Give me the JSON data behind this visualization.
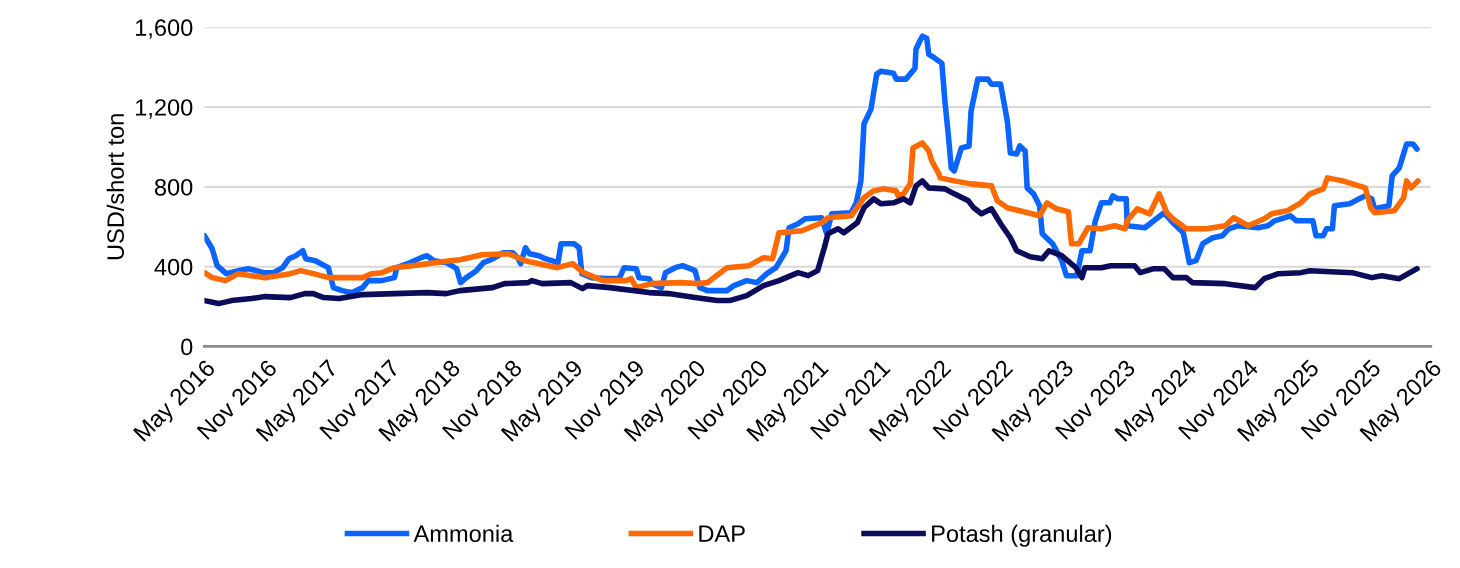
{
  "chart_data": {
    "type": "line",
    "ylabel": "USD/short ton",
    "xlim": [
      "2016-05",
      "2026-05"
    ],
    "xticks": [
      {
        "value": "2016-05",
        "label": "May 2016"
      },
      {
        "value": "2016-11",
        "label": "Nov 2016"
      },
      {
        "value": "2017-05",
        "label": "May 2017"
      },
      {
        "value": "2017-11",
        "label": "Nov 2017"
      },
      {
        "value": "2018-05",
        "label": "May 2018"
      },
      {
        "value": "2018-11",
        "label": "Nov 2018"
      },
      {
        "value": "2019-05",
        "label": "May 2019"
      },
      {
        "value": "2019-11",
        "label": "Nov 2019"
      },
      {
        "value": "2020-05",
        "label": "May 2020"
      },
      {
        "value": "2020-11",
        "label": "Nov 2020"
      },
      {
        "value": "2021-05",
        "label": "May 2021"
      },
      {
        "value": "2021-11",
        "label": "Nov 2021"
      },
      {
        "value": "2022-05",
        "label": "May 2022"
      },
      {
        "value": "2022-11",
        "label": "Nov 2022"
      },
      {
        "value": "2023-05",
        "label": "May 2023"
      },
      {
        "value": "2023-11",
        "label": "Nov 2023"
      },
      {
        "value": "2024-05",
        "label": "May 2024"
      },
      {
        "value": "2024-11",
        "label": "Nov 2024"
      },
      {
        "value": "2025-05",
        "label": "May 2025"
      },
      {
        "value": "2025-11",
        "label": "Nov 2025"
      },
      {
        "value": "2026-05",
        "label": "May 2026"
      }
    ],
    "ylim": [
      0,
      1600
    ],
    "yticks": [
      0,
      {
        "value": 400,
        "label": "400"
      },
      {
        "value": 800,
        "label": "800"
      },
      {
        "value": 1200,
        "label": "1,200"
      },
      {
        "value": 1600,
        "label": "1,600"
      }
    ],
    "grid": "y",
    "legend": "bottom",
    "marker": "none",
    "line_style": "solid",
    "series": [
      {
        "name": "Ammonia",
        "color": "#0a64ff",
        "x": [
          "2016-05-01",
          "2016-05-24",
          "2016-06-08",
          "2016-07-05",
          "2016-08-10",
          "2016-09-08",
          "2016-10-25",
          "2016-11-23",
          "2016-12-20",
          "2017-01-08",
          "2017-01-28",
          "2017-02-18",
          "2017-02-27",
          "2017-03-27",
          "2017-05-05",
          "2017-05-20",
          "2017-06-15",
          "2017-07-15",
          "2017-08-15",
          "2017-09-01",
          "2017-10-10",
          "2017-11-18",
          "2017-11-25",
          "2017-12-27",
          "2018-02-05",
          "2018-02-23",
          "2018-03-15",
          "2018-04-22",
          "2018-05-22",
          "2018-06-03",
          "2018-06-20",
          "2018-07-20",
          "2018-08-10",
          "2018-09-08",
          "2018-10-08",
          "2018-11-05",
          "2018-11-20",
          "2018-11-29",
          "2018-12-13",
          "2018-12-25",
          "2019-01-22",
          "2019-02-10",
          "2019-03-20",
          "2019-03-29",
          "2019-05-07",
          "2019-05-22",
          "2019-05-30",
          "2019-06-28",
          "2019-08-12",
          "2019-09-18",
          "2019-10-03",
          "2019-11-08",
          "2019-11-16",
          "2019-12-16",
          "2019-12-24",
          "2020-01-22",
          "2020-02-03",
          "2020-03-03",
          "2020-03-25",
          "2020-05-01",
          "2020-05-15",
          "2020-06-07",
          "2020-08-04",
          "2020-08-25",
          "2020-10-02",
          "2020-11-01",
          "2020-12-01",
          "2020-12-28",
          "2021-01-27",
          "2021-02-05",
          "2021-03-04",
          "2021-03-25",
          "2021-05-13",
          "2021-05-28",
          "2021-06-12",
          "2021-08-09",
          "2021-08-24",
          "2021-09-07",
          "2021-09-16",
          "2021-10-07",
          "2021-10-24",
          "2021-11-06",
          "2021-12-13",
          "2021-12-21",
          "2022-01-19",
          "2022-02-03",
          "2022-02-15",
          "2022-02-18",
          "2022-03-01",
          "2022-03-09",
          "2022-03-22",
          "2022-03-28",
          "2022-04-15",
          "2022-05-06",
          "2022-05-15",
          "2022-05-25",
          "2022-06-03",
          "2022-06-12",
          "2022-07-03",
          "2022-07-26",
          "2022-08-01",
          "2022-08-21",
          "2022-09-20",
          "2022-10-01",
          "2022-10-28",
          "2022-11-17",
          "2022-11-26",
          "2022-12-15",
          "2022-12-24",
          "2023-01-09",
          "2023-01-15",
          "2023-02-03",
          "2023-02-21",
          "2023-03-01",
          "2023-04-01",
          "2023-04-28",
          "2023-05-12",
          "2023-06-12",
          "2023-06-27",
          "2023-07-21",
          "2023-08-06",
          "2023-08-24",
          "2023-09-18",
          "2023-09-27",
          "2023-10-12",
          "2023-11-06",
          "2023-11-09",
          "2024-01-01",
          "2024-01-27",
          "2024-02-27",
          "2024-03-24",
          "2024-04-24",
          "2024-05-12",
          "2024-06-01",
          "2024-06-21",
          "2024-07-21",
          "2024-08-18",
          "2024-09-06",
          "2024-10-03",
          "2024-12-03",
          "2025-01-01",
          "2025-01-21",
          "2025-03-09",
          "2025-03-27",
          "2025-05-15",
          "2025-05-24",
          "2025-06-15",
          "2025-06-24",
          "2025-07-12",
          "2025-07-18",
          "2025-09-01",
          "2025-09-18",
          "2025-10-18",
          "2025-11-06",
          "2025-11-15",
          "2025-12-27",
          "2026-01-06",
          "2026-01-27",
          "2026-02-18",
          "2026-03-09",
          "2026-03-21"
        ],
        "values": [
          555,
          490,
          405,
          365,
          380,
          390,
          370,
          370,
          395,
          440,
          455,
          480,
          440,
          430,
          395,
          295,
          280,
          270,
          295,
          330,
          330,
          345,
          395,
          415,
          445,
          455,
          430,
          420,
          390,
          320,
          345,
          380,
          420,
          440,
          470,
          470,
          445,
          415,
          495,
          465,
          455,
          440,
          420,
          515,
          515,
          495,
          365,
          345,
          340,
          340,
          395,
          390,
          345,
          340,
          315,
          295,
          370,
          395,
          405,
          380,
          295,
          280,
          280,
          305,
          330,
          320,
          365,
          395,
          480,
          595,
          615,
          640,
          645,
          565,
          665,
          670,
          720,
          830,
          1115,
          1190,
          1365,
          1380,
          1370,
          1340,
          1340,
          1370,
          1395,
          1490,
          1530,
          1555,
          1545,
          1465,
          1445,
          1420,
          1230,
          1065,
          895,
          880,
          995,
          1005,
          1180,
          1340,
          1340,
          1315,
          1315,
          1130,
          970,
          965,
          1005,
          980,
          795,
          765,
          705,
          565,
          515,
          430,
          355,
          355,
          480,
          480,
          630,
          720,
          720,
          755,
          740,
          740,
          605,
          595,
          630,
          670,
          620,
          570,
          420,
          430,
          515,
          545,
          555,
          590,
          605,
          595,
          605,
          630,
          655,
          630,
          630,
          555,
          555,
          590,
          590,
          705,
          715,
          730,
          755,
          740,
          690,
          705,
          855,
          895,
          1015,
          1015,
          990
        ]
      },
      {
        "name": "DAP",
        "color": "#ff6a00",
        "x": [
          "2016-05-01",
          "2016-05-24",
          "2016-07-03",
          "2016-08-10",
          "2016-09-18",
          "2016-10-28",
          "2017-01-12",
          "2017-02-12",
          "2017-03-21",
          "2017-05-06",
          "2017-08-15",
          "2017-09-12",
          "2017-10-12",
          "2017-11-18",
          "2018-01-09",
          "2018-02-24",
          "2018-05-03",
          "2018-06-01",
          "2018-08-06",
          "2018-10-24",
          "2018-12-12",
          "2019-03-18",
          "2019-05-03",
          "2019-06-03",
          "2019-08-01",
          "2019-10-09",
          "2019-10-24",
          "2019-11-08",
          "2019-12-24",
          "2020-03-21",
          "2020-05-09",
          "2020-06-07",
          "2020-08-04",
          "2020-10-09",
          "2020-11-21",
          "2020-12-18",
          "2021-01-06",
          "2021-03-15",
          "2021-05-13",
          "2021-06-01",
          "2021-08-09",
          "2021-09-16",
          "2021-10-15",
          "2021-11-12",
          "2021-12-21",
          "2021-12-27",
          "2022-01-12",
          "2022-02-01",
          "2022-02-09",
          "2022-03-09",
          "2022-03-28",
          "2022-04-06",
          "2022-04-27",
          "2022-05-01",
          "2022-06-12",
          "2022-08-01",
          "2022-10-01",
          "2022-10-18",
          "2022-11-17",
          "2022-12-24",
          "2023-02-21",
          "2023-03-15",
          "2023-04-12",
          "2023-05-18",
          "2023-05-27",
          "2023-06-18",
          "2023-07-15",
          "2023-08-24",
          "2023-10-03",
          "2023-11-03",
          "2023-11-09",
          "2023-12-09",
          "2024-01-15",
          "2024-02-12",
          "2024-03-06",
          "2024-03-24",
          "2024-05-03",
          "2024-07-01",
          "2024-08-27",
          "2024-09-21",
          "2024-11-03",
          "2024-12-21",
          "2025-01-12",
          "2025-02-27",
          "2025-04-09",
          "2025-05-06",
          "2025-06-15",
          "2025-06-27",
          "2025-08-12",
          "2025-10-18",
          "2025-11-03",
          "2025-11-15",
          "2026-01-12",
          "2026-02-09",
          "2026-02-18",
          "2026-03-03",
          "2026-03-24"
        ],
        "values": [
          370,
          345,
          330,
          365,
          355,
          345,
          365,
          380,
          365,
          345,
          345,
          365,
          370,
          395,
          405,
          415,
          430,
          435,
          460,
          465,
          430,
          395,
          415,
          370,
          330,
          330,
          340,
          295,
          315,
          320,
          315,
          320,
          395,
          405,
          445,
          440,
          570,
          580,
          620,
          645,
          655,
          745,
          780,
          790,
          780,
          755,
          765,
          815,
          995,
          1020,
          980,
          930,
          865,
          845,
          830,
          815,
          805,
          730,
          695,
          680,
          655,
          720,
          690,
          675,
          515,
          515,
          595,
          590,
          605,
          590,
          630,
          690,
          665,
          765,
          670,
          640,
          590,
          590,
          605,
          645,
          605,
          640,
          665,
          680,
          720,
          765,
          790,
          845,
          830,
          795,
          695,
          670,
          680,
          745,
          830,
          795,
          830
        ]
      },
      {
        "name": "Potash (granular)",
        "color": "#0c0c5a",
        "x": [
          "2016-05-01",
          "2016-06-12",
          "2016-07-21",
          "2016-09-18",
          "2016-10-28",
          "2017-01-12",
          "2017-02-24",
          "2017-03-21",
          "2017-04-21",
          "2017-06-06",
          "2017-08-15",
          "2017-11-18",
          "2018-02-24",
          "2018-04-21",
          "2018-06-01",
          "2018-09-06",
          "2018-10-12",
          "2018-12-21",
          "2019-01-01",
          "2019-02-01",
          "2019-04-27",
          "2019-06-01",
          "2019-06-15",
          "2019-08-21",
          "2019-12-16",
          "2020-02-12",
          "2020-05-01",
          "2020-07-06",
          "2020-08-12",
          "2020-10-02",
          "2020-11-21",
          "2021-01-06",
          "2021-03-04",
          "2021-04-03",
          "2021-05-01",
          "2021-05-21",
          "2021-06-01",
          "2021-07-01",
          "2021-07-18",
          "2021-08-27",
          "2021-09-16",
          "2021-10-15",
          "2021-11-06",
          "2021-12-13",
          "2022-01-12",
          "2022-02-01",
          "2022-02-18",
          "2022-03-09",
          "2022-03-28",
          "2022-05-15",
          "2022-06-12",
          "2022-07-24",
          "2022-08-09",
          "2022-09-01",
          "2022-10-01",
          "2022-10-28",
          "2022-11-26",
          "2022-12-15",
          "2023-01-24",
          "2023-03-01",
          "2023-03-21",
          "2023-04-28",
          "2023-06-09",
          "2023-06-27",
          "2023-07-06",
          "2023-08-24",
          "2023-09-21",
          "2023-12-01",
          "2023-12-18",
          "2024-01-27",
          "2024-02-27",
          "2024-03-24",
          "2024-05-03",
          "2024-05-21",
          "2024-08-27",
          "2024-11-24",
          "2024-12-21",
          "2025-02-01",
          "2025-04-09",
          "2025-05-06",
          "2025-09-09",
          "2025-11-06",
          "2025-12-06",
          "2026-01-27",
          "2026-03-21"
        ],
        "values": [
          230,
          215,
          230,
          240,
          250,
          245,
          265,
          265,
          245,
          240,
          260,
          265,
          270,
          265,
          280,
          295,
          315,
          320,
          330,
          315,
          320,
          290,
          305,
          295,
          270,
          265,
          245,
          230,
          230,
          255,
          305,
          330,
          370,
          355,
          380,
          495,
          565,
          590,
          570,
          620,
          695,
          740,
          715,
          720,
          740,
          720,
          805,
          830,
          795,
          790,
          765,
          730,
          695,
          665,
          690,
          615,
          545,
          480,
          450,
          440,
          480,
          455,
          395,
          345,
          395,
          395,
          405,
          405,
          370,
          390,
          390,
          345,
          345,
          320,
          315,
          295,
          340,
          365,
          370,
          380,
          370,
          345,
          355,
          340,
          390
        ]
      }
    ]
  }
}
